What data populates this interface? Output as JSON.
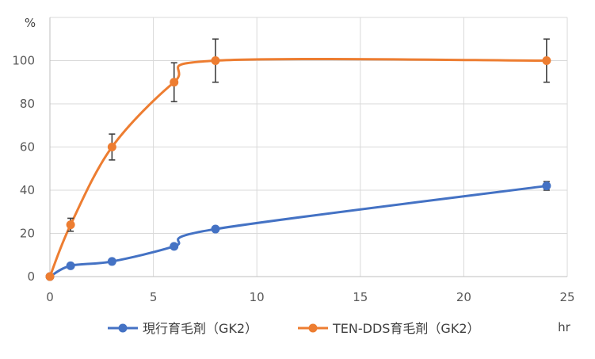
{
  "chart_data": {
    "type": "line",
    "y_unit_label": "%",
    "x_unit_label": "hr",
    "xlim": [
      0,
      25
    ],
    "ylim": [
      0,
      120
    ],
    "x_ticks": [
      "0",
      "5",
      "10",
      "15",
      "20",
      "25"
    ],
    "y_ticks": [
      "0",
      "20",
      "40",
      "60",
      "80",
      "100"
    ],
    "grid": true,
    "legend_position": "bottom",
    "series": [
      {
        "name": "現行育毛剤（GK2）",
        "color": "#4472c4",
        "points": [
          {
            "x": 0,
            "y": 0
          },
          {
            "x": 1,
            "y": 5
          },
          {
            "x": 3,
            "y": 7
          },
          {
            "x": 6,
            "y": 14
          },
          {
            "x": 8,
            "y": 22
          },
          {
            "x": 24,
            "y": 42,
            "err": 2
          }
        ]
      },
      {
        "name": "TEN-DDS育毛剤（GK2）",
        "color": "#ed7d31",
        "points": [
          {
            "x": 0,
            "y": 0
          },
          {
            "x": 1,
            "y": 24,
            "err": 3
          },
          {
            "x": 3,
            "y": 60,
            "err": 6
          },
          {
            "x": 6,
            "y": 90,
            "err": 9
          },
          {
            "x": 8,
            "y": 100,
            "err": 10
          },
          {
            "x": 24,
            "y": 100,
            "err": 10
          }
        ]
      }
    ]
  }
}
